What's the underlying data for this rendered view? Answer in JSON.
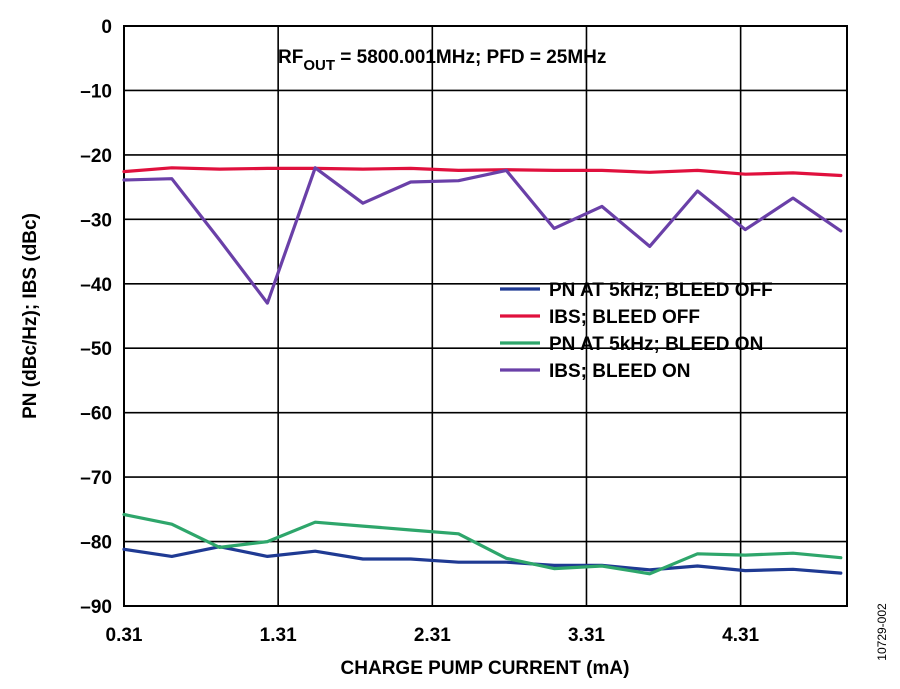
{
  "chart_data": {
    "type": "line",
    "xlabel": "CHARGE PUMP CURRENT (mA)",
    "ylabel": "PN (dBc/Hz); IBS (dBc)",
    "xlim": [
      0.31,
      5.0
    ],
    "ylim": [
      -90,
      0
    ],
    "xticks": [
      0.31,
      1.31,
      2.31,
      3.31,
      4.31
    ],
    "xtick_labels": [
      "0.31",
      "1.31",
      "2.31",
      "3.31",
      "4.31"
    ],
    "yticks": [
      0,
      -10,
      -20,
      -30,
      -40,
      -50,
      -60,
      -70,
      -80,
      -90
    ],
    "ytick_labels": [
      "0",
      "–10",
      "–20",
      "–30",
      "–40",
      "–50",
      "–60",
      "–70",
      "–80",
      "–90"
    ],
    "grid": true,
    "annotation": {
      "prefix": "RF",
      "subscript": "OUT",
      "suffix": " = 5800.001MHz; PFD = 25MHz"
    },
    "figure_id": "10729-002",
    "legend_position": "center-right",
    "series": [
      {
        "name": "PN AT 5kHz; BLEED OFF",
        "color": "#1f3a93",
        "x": [
          0.31,
          0.62,
          0.93,
          1.24,
          1.55,
          1.86,
          2.17,
          2.48,
          2.79,
          3.1,
          3.41,
          3.72,
          4.03,
          4.34,
          4.65,
          4.96
        ],
        "y": [
          -81.2,
          -82.3,
          -80.8,
          -82.3,
          -81.5,
          -82.7,
          -82.7,
          -83.2,
          -83.2,
          -83.7,
          -83.7,
          -84.4,
          -83.8,
          -84.5,
          -84.3,
          -84.9
        ]
      },
      {
        "name": "IBS; BLEED OFF",
        "color": "#e0103d",
        "x": [
          0.31,
          0.62,
          0.93,
          1.24,
          1.55,
          1.86,
          2.17,
          2.48,
          2.79,
          3.1,
          3.41,
          3.72,
          4.03,
          4.34,
          4.65,
          4.96
        ],
        "y": [
          -22.6,
          -22.0,
          -22.2,
          -22.1,
          -22.1,
          -22.2,
          -22.1,
          -22.4,
          -22.3,
          -22.4,
          -22.4,
          -22.7,
          -22.4,
          -23.0,
          -22.8,
          -23.2
        ]
      },
      {
        "name": "PN AT 5kHz; BLEED ON",
        "color": "#2ea66b",
        "x": [
          0.31,
          0.62,
          0.93,
          1.24,
          1.55,
          1.86,
          2.17,
          2.48,
          2.79,
          3.1,
          3.41,
          3.72,
          4.03,
          4.34,
          4.65,
          4.96
        ],
        "y": [
          -75.8,
          -77.3,
          -80.9,
          -80.0,
          -77.0,
          -77.6,
          -78.2,
          -78.8,
          -82.6,
          -84.2,
          -83.8,
          -85.0,
          -81.9,
          -82.1,
          -81.8,
          -82.5
        ]
      },
      {
        "name": "IBS; BLEED ON",
        "color": "#6a40a8",
        "x": [
          0.31,
          0.62,
          0.93,
          1.24,
          1.55,
          1.86,
          2.17,
          2.48,
          2.79,
          3.1,
          3.41,
          3.72,
          4.03,
          4.34,
          4.65,
          4.96
        ],
        "y": [
          -23.9,
          -23.7,
          -33.2,
          -43.0,
          -22.0,
          -27.5,
          -24.2,
          -24.0,
          -22.4,
          -31.4,
          -28.0,
          -34.2,
          -25.6,
          -31.6,
          -26.7,
          -31.8
        ]
      }
    ]
  }
}
